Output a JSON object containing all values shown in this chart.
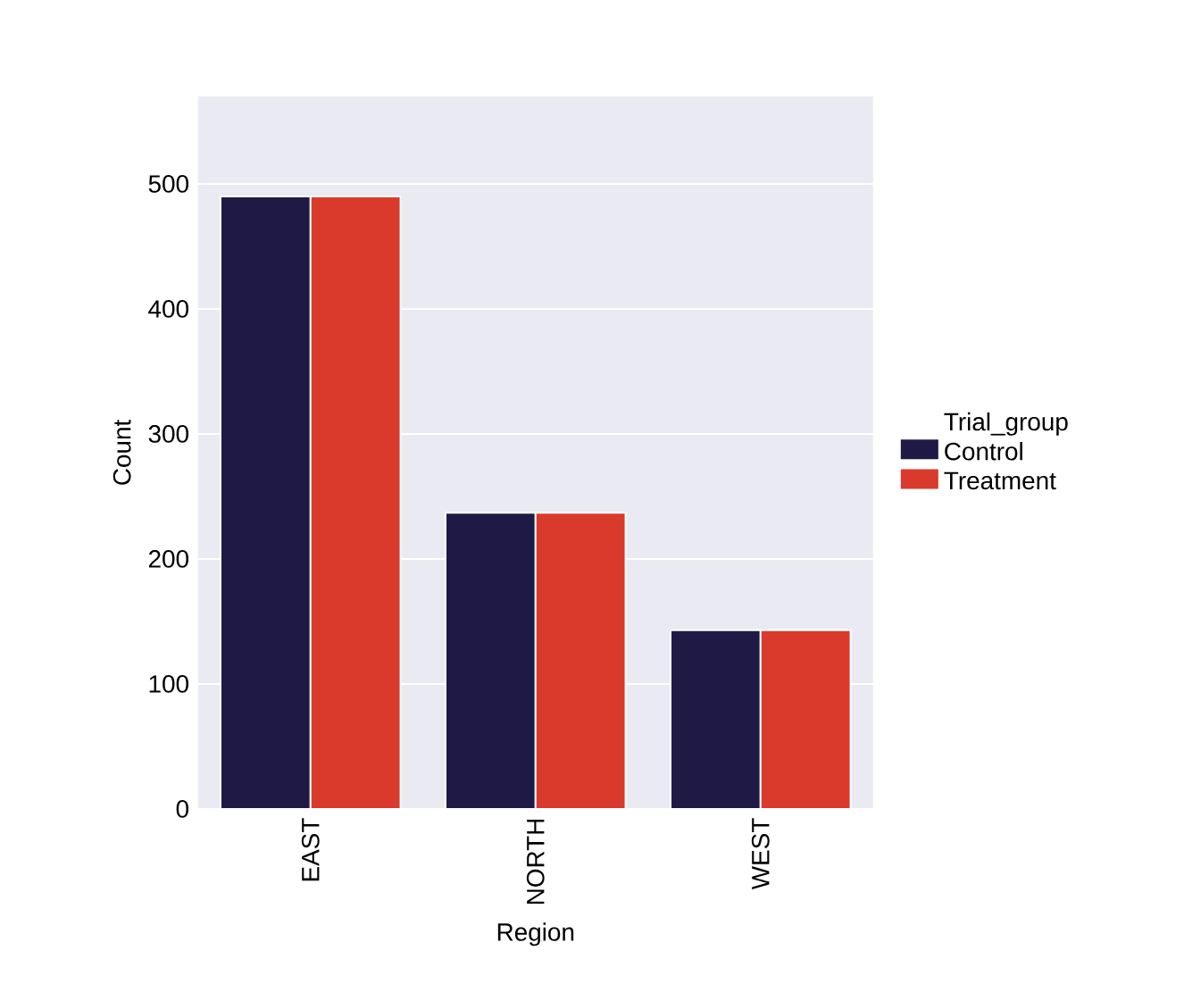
{
  "chart_data": {
    "type": "bar",
    "xlabel": "Region",
    "ylabel": "Count",
    "legend_title": "Trial_group",
    "categories": [
      "EAST",
      "NORTH",
      "WEST"
    ],
    "series": [
      {
        "name": "Control",
        "color": "#1f1a45",
        "values": [
          490,
          237,
          143
        ]
      },
      {
        "name": "Treatment",
        "color": "#d93a2b",
        "values": [
          490,
          237,
          143
        ]
      }
    ],
    "ylim": [
      0,
      570
    ],
    "yticks": [
      0,
      100,
      200,
      300,
      400,
      500
    ],
    "grid": "y",
    "legend": "right"
  }
}
